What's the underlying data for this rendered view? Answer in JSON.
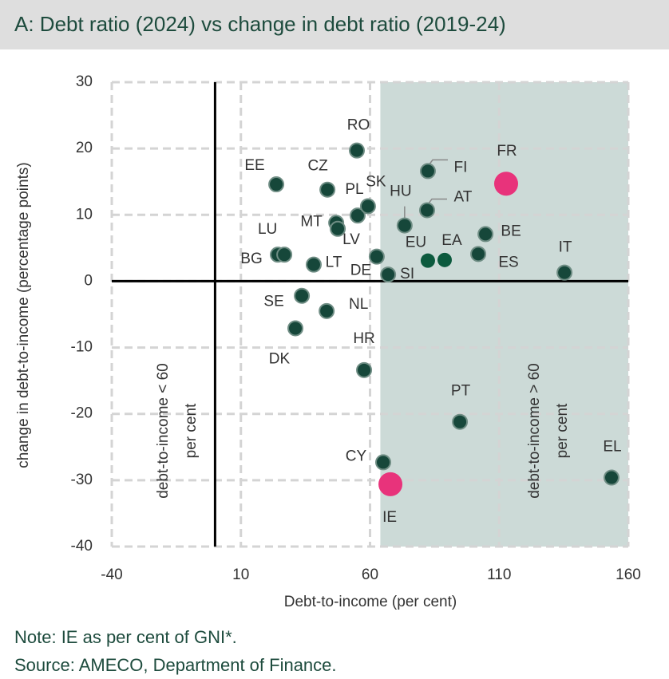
{
  "chart_data": {
    "type": "scatter",
    "title": "A: Debt ratio (2024) vs change in debt ratio (2019-24)",
    "x_label": "Debt-to-income (per cent)",
    "y_label": "change in debt-to-income (percentage points)",
    "xlim": [
      -40,
      160
    ],
    "ylim": [
      -40,
      30
    ],
    "xticks": [
      -40,
      10,
      60,
      110,
      160
    ],
    "yticks": [
      -40,
      -30,
      -20,
      -10,
      0,
      10,
      20,
      30
    ],
    "grid": true,
    "shaded_xlim": [
      64,
      160
    ],
    "shade_color": "#ccdad7",
    "highlight_color": "#e8337b",
    "aggregate_color": "#0c5a3e",
    "annotations": [
      [
        "debt-to-income < 60",
        "per cent"
      ],
      [
        "debt-to-income > 60",
        "per cent"
      ]
    ],
    "labels": [
      "RO",
      "EE",
      "CZ",
      "PL",
      "SK",
      "MT",
      "LV",
      "BG",
      "LU",
      "LT",
      "DE",
      "SI",
      "FI",
      "HU",
      "AT",
      "EU",
      "EA",
      "ES",
      "BE",
      "FR",
      "IT",
      "SE",
      "NL",
      "DK",
      "HR",
      "PT",
      "CY",
      "IE",
      "EL"
    ],
    "x": [
      54.9,
      23.7,
      43.5,
      55.2,
      59.2,
      46.9,
      47.5,
      24.3,
      26.8,
      38.2,
      62.6,
      67.0,
      82.4,
      73.4,
      82.1,
      82.4,
      88.9,
      101.9,
      104.7,
      112.7,
      135.3,
      33.6,
      43.2,
      31.1,
      57.7,
      94.8,
      65.1,
      67.9,
      153.5
    ],
    "y": [
      19.7,
      14.6,
      13.8,
      9.9,
      11.3,
      8.8,
      7.9,
      4.0,
      4.0,
      2.5,
      3.7,
      1.0,
      16.6,
      8.4,
      10.7,
      3.1,
      3.2,
      4.1,
      7.1,
      14.7,
      1.3,
      -2.2,
      -4.5,
      -7.1,
      -13.4,
      -21.2,
      -27.3,
      -30.6,
      -29.6
    ],
    "colors": [
      "#16473a",
      "#16473a",
      "#16473a",
      "#16473a",
      "#16473a",
      "#16473a",
      "#16473a",
      "#16473a",
      "#16473a",
      "#16473a",
      "#16473a",
      "#16473a",
      "#16473a",
      "#16473a",
      "#16473a",
      "#0c5a3e",
      "#0c5a3e",
      "#16473a",
      "#16473a",
      "#e8337b",
      "#16473a",
      "#16473a",
      "#16473a",
      "#16473a",
      "#16473a",
      "#16473a",
      "#16473a",
      "#e8337b",
      "#16473a"
    ]
  },
  "notes": [
    "Note: IE as per cent of GNI*.",
    "Source: AMECO, Department of Finance."
  ]
}
